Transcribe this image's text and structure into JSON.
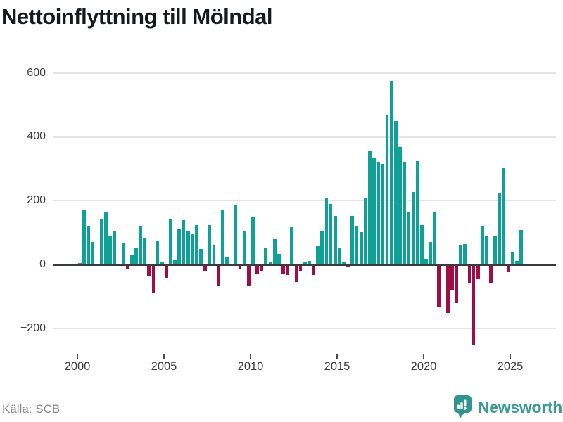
{
  "header": {
    "title": "Nettoinflyttning till Mölndal"
  },
  "footer": {
    "source_label": "Källa: SCB",
    "logo_text": "Newsworthy",
    "logo_color": "#3a9b94"
  },
  "chart_data": {
    "type": "bar",
    "title": "Nettoinflyttning till Mölndal",
    "frequency": "quarterly",
    "start": "2000-Q1",
    "end": "2025-Q3",
    "xlabel": "",
    "ylabel": "",
    "ylim": [
      -280,
      640
    ],
    "grid": "horizontal",
    "colors": {
      "positive": "#0fa195",
      "negative": "#a00d45"
    },
    "y_ticks": [
      {
        "v": 600,
        "label": "600"
      },
      {
        "v": 400,
        "label": "400"
      },
      {
        "v": 200,
        "label": "200"
      },
      {
        "v": 0,
        "label": "0"
      },
      {
        "v": -200,
        "label": "−200"
      }
    ],
    "x_ticks": [
      {
        "year": 2000,
        "label": "2000"
      },
      {
        "year": 2005,
        "label": "2005"
      },
      {
        "year": 2010,
        "label": "2010"
      },
      {
        "year": 2015,
        "label": "2015"
      },
      {
        "year": 2020,
        "label": "2020"
      },
      {
        "year": 2025,
        "label": "2025"
      }
    ],
    "values": [
      5,
      170,
      120,
      72,
      2,
      143,
      163,
      92,
      105,
      2,
      68,
      -15,
      30,
      54,
      119,
      83,
      -36,
      -90,
      73,
      10,
      -40,
      144,
      16,
      111,
      139,
      107,
      95,
      124,
      49,
      -22,
      124,
      60,
      -67,
      173,
      23,
      2,
      189,
      -12,
      107,
      -68,
      149,
      -27,
      -18,
      54,
      7,
      80,
      34,
      -28,
      -33,
      118,
      -53,
      -20,
      10,
      13,
      -33,
      58,
      105,
      211,
      191,
      154,
      52,
      7,
      -8,
      153,
      120,
      102,
      211,
      355,
      336,
      322,
      316,
      470,
      575,
      450,
      369,
      322,
      164,
      229,
      324,
      124,
      18,
      71,
      166,
      -133,
      2,
      -151,
      -78,
      -120,
      60,
      66,
      -58,
      -252,
      -46,
      122,
      91,
      -57,
      89,
      224,
      302,
      -24,
      41,
      13,
      109
    ]
  }
}
